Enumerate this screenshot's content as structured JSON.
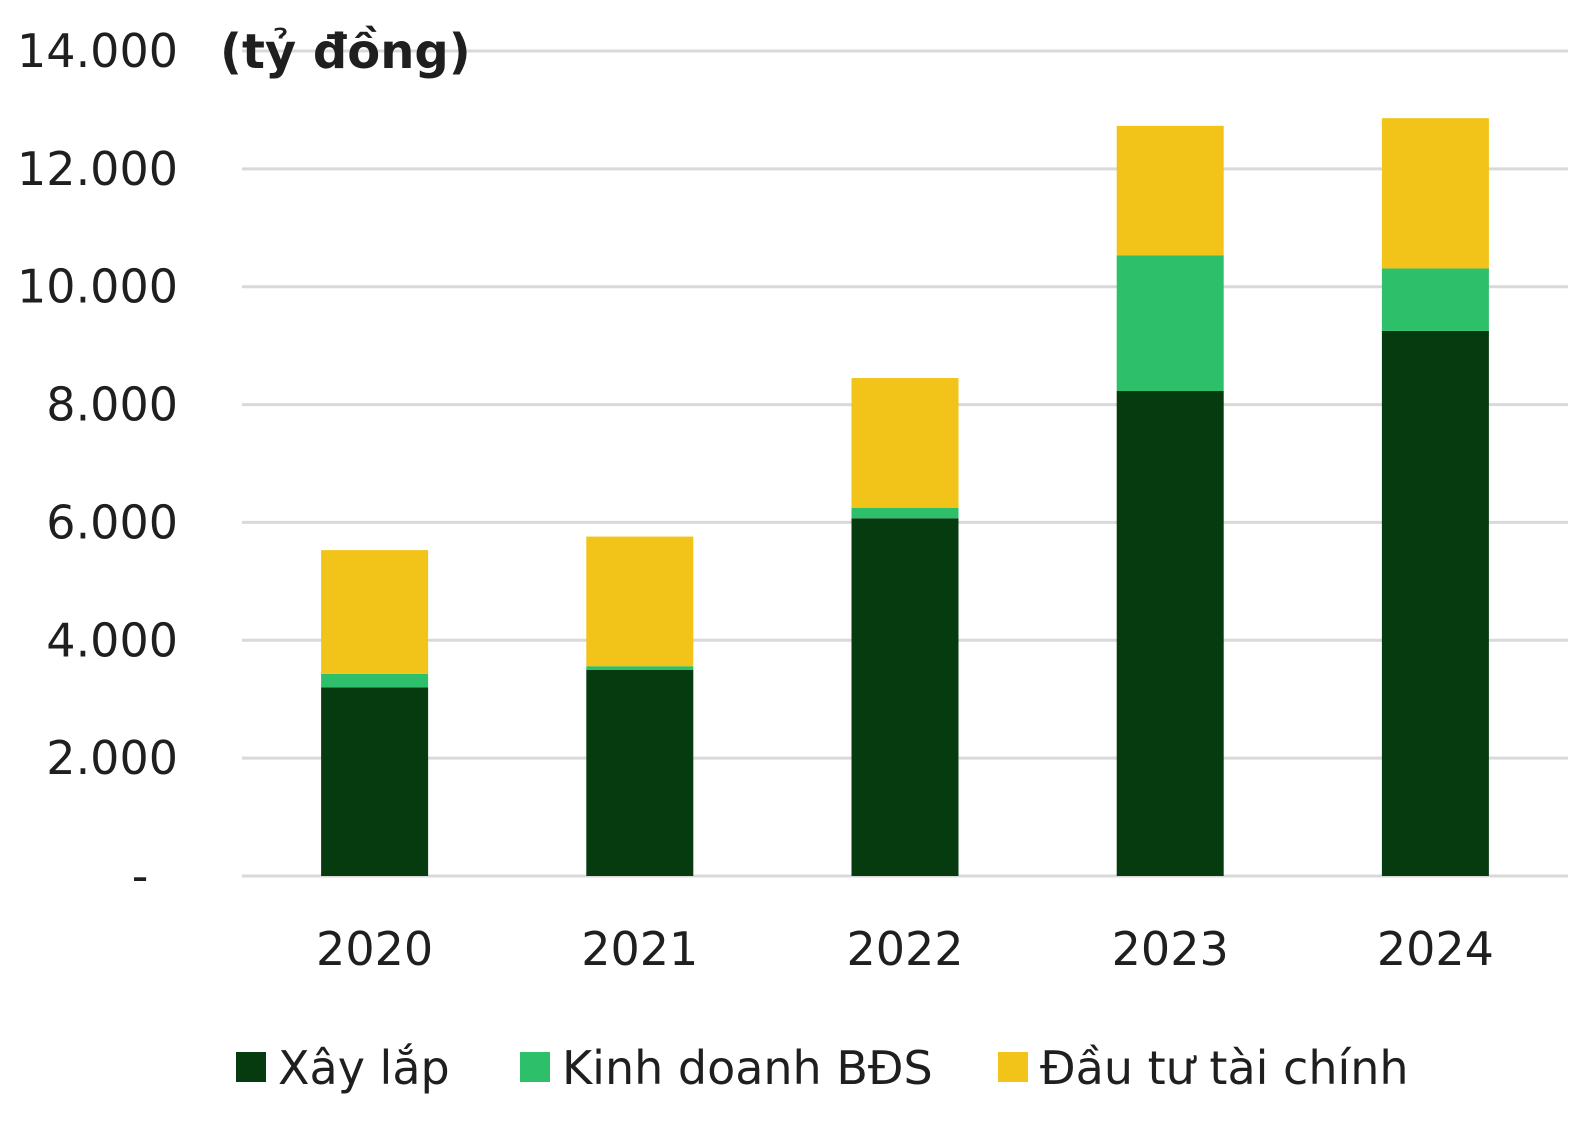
{
  "chart_data": {
    "type": "bar",
    "stacked": true,
    "unit_label": "(tỷ đồng)",
    "categories": [
      "2020",
      "2021",
      "2022",
      "2023",
      "2024"
    ],
    "series": [
      {
        "name": "Xây lắp",
        "color": "#063a0f",
        "values": [
          3200,
          3500,
          6070,
          8230,
          9250
        ]
      },
      {
        "name": "Kinh doanh BĐS",
        "color": "#2ebf6b",
        "values": [
          230,
          60,
          180,
          2300,
          1060
        ]
      },
      {
        "name": "Đầu tư tài chính",
        "color": "#f2c318",
        "values": [
          2100,
          2200,
          2200,
          2200,
          2550
        ]
      }
    ],
    "ylim": [
      0,
      14000
    ],
    "yticks": [
      {
        "value": 0,
        "label": "-"
      },
      {
        "value": 2000,
        "label": "2.000"
      },
      {
        "value": 4000,
        "label": "4.000"
      },
      {
        "value": 6000,
        "label": "6.000"
      },
      {
        "value": 8000,
        "label": "8.000"
      },
      {
        "value": 10000,
        "label": "10.000"
      },
      {
        "value": 12000,
        "label": "12.000"
      },
      {
        "value": 14000,
        "label": "14.000"
      }
    ],
    "grid": true,
    "gridline_color": "#d9d9d9",
    "legend_position": "bottom"
  }
}
